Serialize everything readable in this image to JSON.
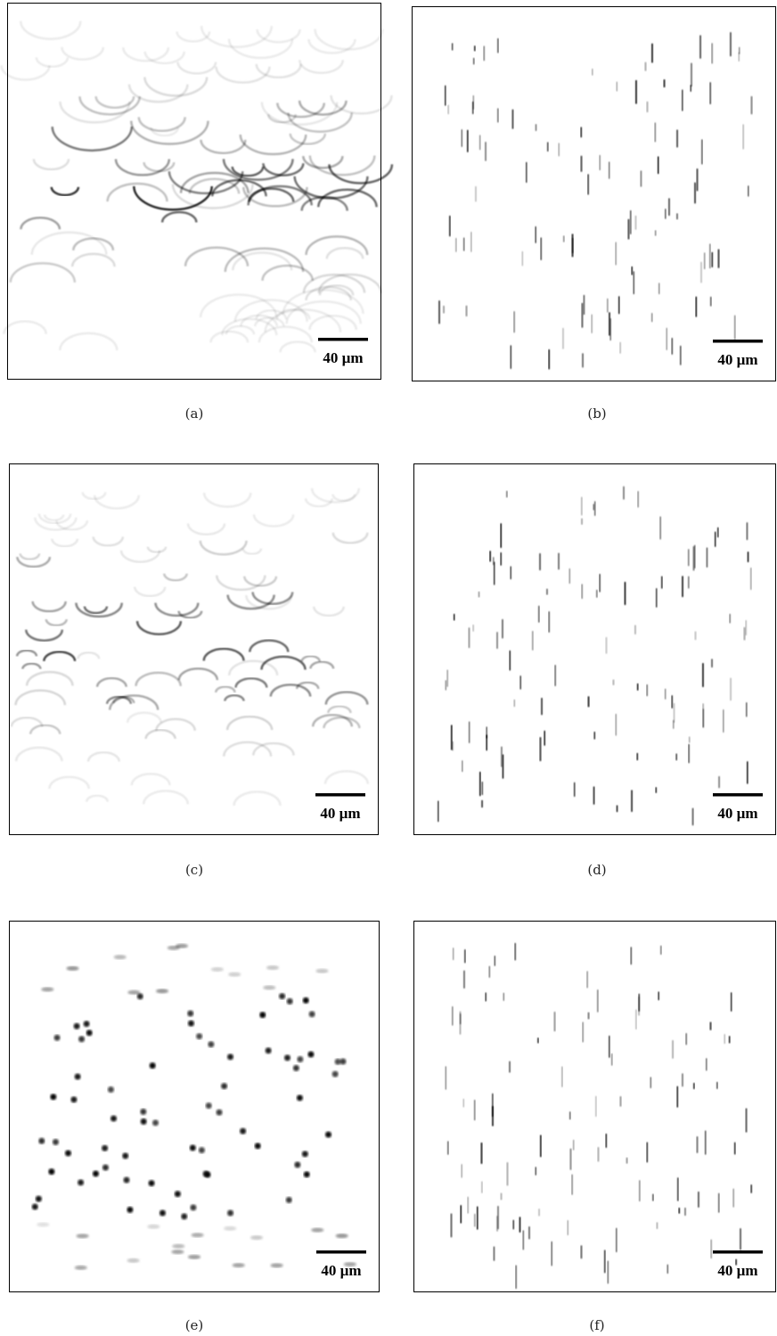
{
  "panels": [
    {
      "label": "(a)",
      "scale_bar": "40 µm"
    },
    {
      "label": "(b)",
      "scale_bar": "40 µm"
    },
    {
      "label": "(c)",
      "scale_bar": "40 µm"
    },
    {
      "label": "(d)",
      "scale_bar": "40 µm"
    },
    {
      "label": "(e)",
      "scale_bar": "40 µm"
    },
    {
      "label": "(f)",
      "scale_bar": "40 µm"
    }
  ]
}
